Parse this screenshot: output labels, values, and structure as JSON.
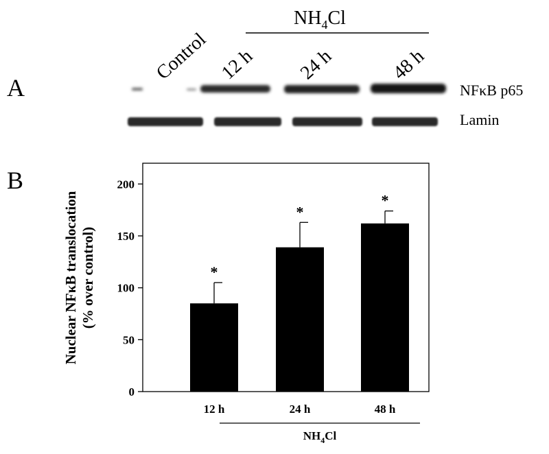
{
  "panel_a": {
    "letter": "A",
    "header": {
      "prefix": "NH",
      "sub": "4",
      "suffix": "Cl"
    },
    "lanes": [
      "Control",
      "12 h",
      "24 h",
      "48 h"
    ],
    "blot_labels": [
      "NFκB p65",
      "Lamin"
    ]
  },
  "panel_b": {
    "letter": "B"
  },
  "chart_data": {
    "type": "bar",
    "categories": [
      "12 h",
      "24 h",
      "48 h"
    ],
    "values": [
      85,
      139,
      162
    ],
    "errors": [
      20,
      24,
      12
    ],
    "significance": [
      "*",
      "*",
      "*"
    ],
    "ylabel_line1": "Nuclear NFκB translocation",
    "ylabel_line2": "(% over control)",
    "yticks": [
      0,
      50,
      100,
      150,
      200
    ],
    "ylim": [
      0,
      220
    ],
    "bar_color": "#000000",
    "group_label": {
      "prefix": "NH",
      "sub": "4",
      "suffix": "Cl"
    }
  }
}
